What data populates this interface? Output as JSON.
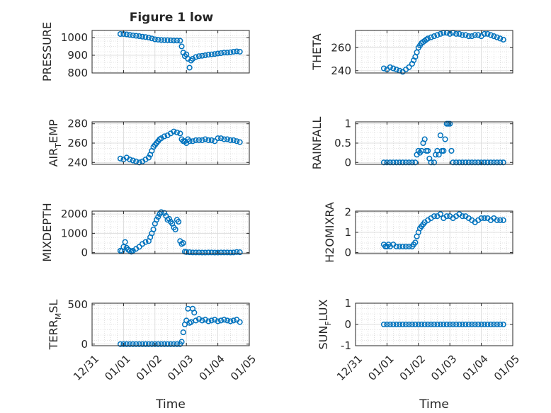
{
  "figure": {
    "title": "Figure 1 low"
  },
  "colors": {
    "marker": "#0072BD",
    "axis": "#262626",
    "grid": "#c8c8c8",
    "background": "#ffffff"
  },
  "chart_data": [
    {
      "type": "scatter",
      "id": "pressure",
      "col": 0,
      "row": 0,
      "ylabel": {
        "main": "PRESSURE"
      },
      "title": "Figure 1 low",
      "ylim": [
        800,
        1040
      ],
      "yticks": [
        800,
        900,
        1000
      ],
      "yticklabels": [
        "800",
        "900",
        "1000"
      ],
      "xlim": [
        0,
        5
      ],
      "xticks": [
        0,
        1,
        2,
        3,
        4,
        5
      ],
      "xticklabels": [
        "12/31",
        "01/01",
        "01/02",
        "01/03",
        "01/04",
        "01/05"
      ],
      "xlabel": "",
      "grid": true,
      "x": [
        0.9,
        1.0,
        1.1,
        1.2,
        1.3,
        1.4,
        1.5,
        1.6,
        1.7,
        1.8,
        1.9,
        2.0,
        2.1,
        2.2,
        2.3,
        2.4,
        2.5,
        2.6,
        2.7,
        2.8,
        2.85,
        2.9,
        2.95,
        3.0,
        3.05,
        3.1,
        3.15,
        3.2,
        3.3,
        3.4,
        3.5,
        3.6,
        3.7,
        3.8,
        3.9,
        4.0,
        4.1,
        4.2,
        4.3,
        4.4,
        4.5,
        4.6,
        4.7
      ],
      "y": [
        1020,
        1020,
        1018,
        1015,
        1012,
        1010,
        1008,
        1005,
        1003,
        1000,
        995,
        990,
        988,
        986,
        985,
        985,
        984,
        983,
        983,
        982,
        950,
        915,
        895,
        905,
        880,
        830,
        870,
        880,
        890,
        895,
        897,
        900,
        903,
        905,
        907,
        910,
        912,
        915,
        915,
        917,
        920,
        922,
        920
      ]
    },
    {
      "type": "scatter",
      "id": "theta",
      "col": 1,
      "row": 0,
      "ylabel": {
        "main": "THETA"
      },
      "ylim": [
        238,
        275
      ],
      "yticks": [
        240,
        260
      ],
      "yticklabels": [
        "240",
        "260"
      ],
      "xlim": [
        0,
        5
      ],
      "xticks": [
        0,
        1,
        2,
        3,
        4,
        5
      ],
      "xticklabels": [
        "12/31",
        "01/01",
        "01/02",
        "01/03",
        "01/04",
        "01/05"
      ],
      "xlabel": "",
      "grid": true,
      "x": [
        0.9,
        1.0,
        1.1,
        1.2,
        1.3,
        1.4,
        1.5,
        1.6,
        1.7,
        1.8,
        1.85,
        1.9,
        1.95,
        2.0,
        2.05,
        2.1,
        2.15,
        2.2,
        2.25,
        2.3,
        2.4,
        2.5,
        2.6,
        2.7,
        2.8,
        2.9,
        3.0,
        3.1,
        3.2,
        3.3,
        3.4,
        3.5,
        3.6,
        3.7,
        3.8,
        3.9,
        4.0,
        4.1,
        4.2,
        4.3,
        4.4,
        4.5,
        4.6,
        4.7
      ],
      "y": [
        242,
        241,
        243,
        242,
        241,
        240,
        239,
        241,
        243,
        246,
        249,
        252,
        256,
        260,
        262,
        264,
        265,
        266,
        267,
        268,
        269,
        270,
        271,
        272,
        273,
        273,
        272,
        273,
        272,
        272,
        271,
        271,
        270,
        270,
        271,
        271,
        270,
        272,
        272,
        271,
        270,
        269,
        268,
        267
      ]
    },
    {
      "type": "scatter",
      "id": "air_temp",
      "col": 0,
      "row": 1,
      "ylabel": {
        "main": "AIR",
        "sub": "T",
        "rest": "EMP"
      },
      "ylim": [
        238,
        282
      ],
      "yticks": [
        240,
        260,
        280
      ],
      "yticklabels": [
        "240",
        "260",
        "280"
      ],
      "xlim": [
        0,
        5
      ],
      "xticks": [
        0,
        1,
        2,
        3,
        4,
        5
      ],
      "xticklabels": [
        "12/31",
        "01/01",
        "01/02",
        "01/03",
        "01/04",
        "01/05"
      ],
      "xlabel": "",
      "grid": true,
      "x": [
        0.9,
        1.0,
        1.1,
        1.2,
        1.3,
        1.4,
        1.5,
        1.6,
        1.7,
        1.8,
        1.85,
        1.9,
        1.95,
        2.0,
        2.05,
        2.1,
        2.15,
        2.2,
        2.3,
        2.4,
        2.5,
        2.6,
        2.7,
        2.8,
        2.85,
        2.9,
        2.95,
        3.0,
        3.05,
        3.1,
        3.2,
        3.3,
        3.4,
        3.5,
        3.6,
        3.7,
        3.8,
        3.9,
        4.0,
        4.1,
        4.2,
        4.3,
        4.4,
        4.5,
        4.6,
        4.7
      ],
      "y": [
        244,
        243,
        245,
        243,
        242,
        241,
        240,
        241,
        243,
        245,
        248,
        252,
        256,
        258,
        260,
        262,
        264,
        265,
        267,
        268,
        270,
        272,
        271,
        270,
        264,
        262,
        262,
        260,
        264,
        262,
        262,
        263,
        263,
        263,
        264,
        263,
        263,
        262,
        265,
        265,
        264,
        264,
        263,
        263,
        262,
        261
      ]
    },
    {
      "type": "scatter",
      "id": "rainfall",
      "col": 1,
      "row": 1,
      "ylabel": {
        "main": "RAINFALL"
      },
      "ylim": [
        -0.05,
        1.05
      ],
      "yticks": [
        0,
        0.5,
        1
      ],
      "yticklabels": [
        "0",
        "0.5",
        "1"
      ],
      "xlim": [
        0,
        5
      ],
      "xticks": [
        0,
        1,
        2,
        3,
        4,
        5
      ],
      "xticklabels": [
        "12/31",
        "01/01",
        "01/02",
        "01/03",
        "01/04",
        "01/05"
      ],
      "xlabel": "",
      "grid": true,
      "x": [
        0.9,
        1.0,
        1.1,
        1.2,
        1.3,
        1.4,
        1.5,
        1.6,
        1.7,
        1.8,
        1.9,
        1.95,
        2.0,
        2.05,
        2.1,
        2.15,
        2.2,
        2.25,
        2.3,
        2.35,
        2.4,
        2.5,
        2.55,
        2.6,
        2.65,
        2.7,
        2.75,
        2.8,
        2.85,
        2.9,
        2.95,
        3.0,
        3.05,
        3.1,
        3.2,
        3.3,
        3.4,
        3.5,
        3.6,
        3.7,
        3.8,
        3.9,
        4.0,
        4.1,
        4.2,
        4.3,
        4.4,
        4.5,
        4.6,
        4.7
      ],
      "y": [
        0,
        0,
        0,
        0,
        0,
        0,
        0,
        0,
        0,
        0,
        0,
        0.2,
        0.3,
        0.25,
        0.3,
        0.5,
        0.6,
        0.3,
        0.3,
        0.1,
        0,
        0,
        0.2,
        0.3,
        0.2,
        0.7,
        0.3,
        0.3,
        0.6,
        1,
        1,
        1,
        0.3,
        0,
        0,
        0,
        0,
        0,
        0,
        0,
        0,
        0,
        0,
        0,
        0,
        0,
        0,
        0,
        0,
        0
      ]
    },
    {
      "type": "scatter",
      "id": "mixdepth",
      "col": 0,
      "row": 2,
      "ylabel": {
        "main": "MIXDEPTH"
      },
      "ylim": [
        -50,
        2150
      ],
      "yticks": [
        0,
        1000,
        2000
      ],
      "yticklabels": [
        "0",
        "1000",
        "2000"
      ],
      "xlim": [
        0,
        5
      ],
      "xticks": [
        0,
        1,
        2,
        3,
        4,
        5
      ],
      "xticklabels": [
        "12/31",
        "01/01",
        "01/02",
        "01/03",
        "01/04",
        "01/05"
      ],
      "xlabel": "",
      "grid": true,
      "x": [
        0.9,
        0.95,
        1.0,
        1.05,
        1.1,
        1.15,
        1.2,
        1.25,
        1.3,
        1.4,
        1.5,
        1.6,
        1.7,
        1.8,
        1.85,
        1.9,
        1.95,
        2.0,
        2.05,
        2.1,
        2.15,
        2.2,
        2.3,
        2.35,
        2.4,
        2.45,
        2.5,
        2.55,
        2.6,
        2.65,
        2.7,
        2.75,
        2.8,
        2.85,
        2.9,
        2.95,
        3.0,
        3.1,
        3.2,
        3.3,
        3.4,
        3.5,
        3.6,
        3.7,
        3.8,
        3.9,
        4.0,
        4.1,
        4.2,
        4.3,
        4.4,
        4.5,
        4.6,
        4.7
      ],
      "y": [
        100,
        80,
        300,
        550,
        250,
        150,
        100,
        50,
        100,
        200,
        300,
        450,
        550,
        600,
        800,
        1000,
        1200,
        1500,
        1700,
        1850,
        2000,
        2100,
        2050,
        1900,
        1700,
        1750,
        1600,
        1500,
        1300,
        1200,
        1700,
        1600,
        600,
        450,
        500,
        50,
        30,
        20,
        10,
        10,
        10,
        5,
        5,
        10,
        10,
        5,
        5,
        10,
        10,
        10,
        5,
        10,
        30,
        20
      ]
    },
    {
      "type": "scatter",
      "id": "h2omixra",
      "col": 1,
      "row": 2,
      "ylabel": {
        "main": "H2OMIXRA"
      },
      "ylim": [
        -0.05,
        2.05
      ],
      "yticks": [
        0,
        1,
        2
      ],
      "yticklabels": [
        "0",
        "1",
        "2"
      ],
      "xlim": [
        0,
        5
      ],
      "xticks": [
        0,
        1,
        2,
        3,
        4,
        5
      ],
      "xticklabels": [
        "12/31",
        "01/01",
        "01/02",
        "01/03",
        "01/04",
        "01/05"
      ],
      "xlabel": "",
      "grid": true,
      "x": [
        0.9,
        0.95,
        1.0,
        1.05,
        1.1,
        1.2,
        1.3,
        1.4,
        1.5,
        1.6,
        1.7,
        1.8,
        1.85,
        1.9,
        1.95,
        2.0,
        2.05,
        2.1,
        2.15,
        2.2,
        2.3,
        2.4,
        2.5,
        2.6,
        2.7,
        2.8,
        2.9,
        3.0,
        3.1,
        3.2,
        3.3,
        3.4,
        3.5,
        3.6,
        3.7,
        3.8,
        3.9,
        4.0,
        4.1,
        4.2,
        4.3,
        4.4,
        4.5,
        4.6,
        4.7
      ],
      "y": [
        0.4,
        0.3,
        0.3,
        0.4,
        0.3,
        0.4,
        0.3,
        0.3,
        0.3,
        0.3,
        0.3,
        0.3,
        0.4,
        0.5,
        0.8,
        1.0,
        1.2,
        1.3,
        1.4,
        1.5,
        1.6,
        1.7,
        1.8,
        1.8,
        1.9,
        1.7,
        1.8,
        1.8,
        1.7,
        1.8,
        1.9,
        1.8,
        1.8,
        1.7,
        1.6,
        1.5,
        1.6,
        1.7,
        1.7,
        1.7,
        1.6,
        1.7,
        1.6,
        1.6,
        1.6
      ]
    },
    {
      "type": "scatter",
      "id": "terr_msl",
      "col": 0,
      "row": 3,
      "ylabel": {
        "main": "TERR",
        "sub": "M",
        "rest": "SL"
      },
      "ylim": [
        -20,
        520
      ],
      "yticks": [
        0,
        500
      ],
      "yticklabels": [
        "0",
        "500"
      ],
      "xlim": [
        0,
        5
      ],
      "xticks": [
        0,
        1,
        2,
        3,
        4,
        5
      ],
      "xticklabels": [
        "12/31",
        "01/01",
        "01/02",
        "01/03",
        "01/04",
        "01/05"
      ],
      "xlabel": "Time",
      "grid": true,
      "x": [
        0.9,
        1.0,
        1.1,
        1.2,
        1.3,
        1.4,
        1.5,
        1.6,
        1.7,
        1.8,
        1.9,
        2.0,
        2.1,
        2.2,
        2.3,
        2.4,
        2.5,
        2.6,
        2.7,
        2.8,
        2.85,
        2.9,
        2.95,
        3.0,
        3.05,
        3.1,
        3.15,
        3.2,
        3.25,
        3.3,
        3.4,
        3.5,
        3.6,
        3.7,
        3.8,
        3.9,
        4.0,
        4.1,
        4.2,
        4.3,
        4.4,
        4.5,
        4.6,
        4.7
      ],
      "y": [
        0,
        0,
        0,
        0,
        0,
        0,
        0,
        0,
        0,
        0,
        0,
        0,
        0,
        0,
        0,
        0,
        0,
        0,
        0,
        0,
        30,
        150,
        250,
        300,
        450,
        270,
        280,
        450,
        400,
        300,
        320,
        300,
        310,
        290,
        300,
        310,
        290,
        300,
        310,
        300,
        290,
        300,
        310,
        280
      ]
    },
    {
      "type": "scatter",
      "id": "sun_flux",
      "col": 1,
      "row": 3,
      "ylabel": {
        "main": "SUN",
        "sub": "F",
        "rest": "LUX"
      },
      "ylim": [
        -1,
        1
      ],
      "yticks": [
        -1,
        0,
        1
      ],
      "yticklabels": [
        "-1",
        "0",
        "1"
      ],
      "xlim": [
        0,
        5
      ],
      "xticks": [
        0,
        1,
        2,
        3,
        4,
        5
      ],
      "xticklabels": [
        "12/31",
        "01/01",
        "01/02",
        "01/03",
        "01/04",
        "01/05"
      ],
      "xlabel": "Time",
      "grid": true,
      "x": [
        0.9,
        1.0,
        1.1,
        1.2,
        1.3,
        1.4,
        1.5,
        1.6,
        1.7,
        1.8,
        1.9,
        2.0,
        2.1,
        2.2,
        2.3,
        2.4,
        2.5,
        2.6,
        2.7,
        2.8,
        2.9,
        3.0,
        3.1,
        3.2,
        3.3,
        3.4,
        3.5,
        3.6,
        3.7,
        3.8,
        3.9,
        4.0,
        4.1,
        4.2,
        4.3,
        4.4,
        4.5,
        4.6,
        4.7
      ],
      "y": [
        0,
        0,
        0,
        0,
        0,
        0,
        0,
        0,
        0,
        0,
        0,
        0,
        0,
        0,
        0,
        0,
        0,
        0,
        0,
        0,
        0,
        0,
        0,
        0,
        0,
        0,
        0,
        0,
        0,
        0,
        0,
        0,
        0,
        0,
        0,
        0,
        0,
        0,
        0
      ]
    }
  ]
}
